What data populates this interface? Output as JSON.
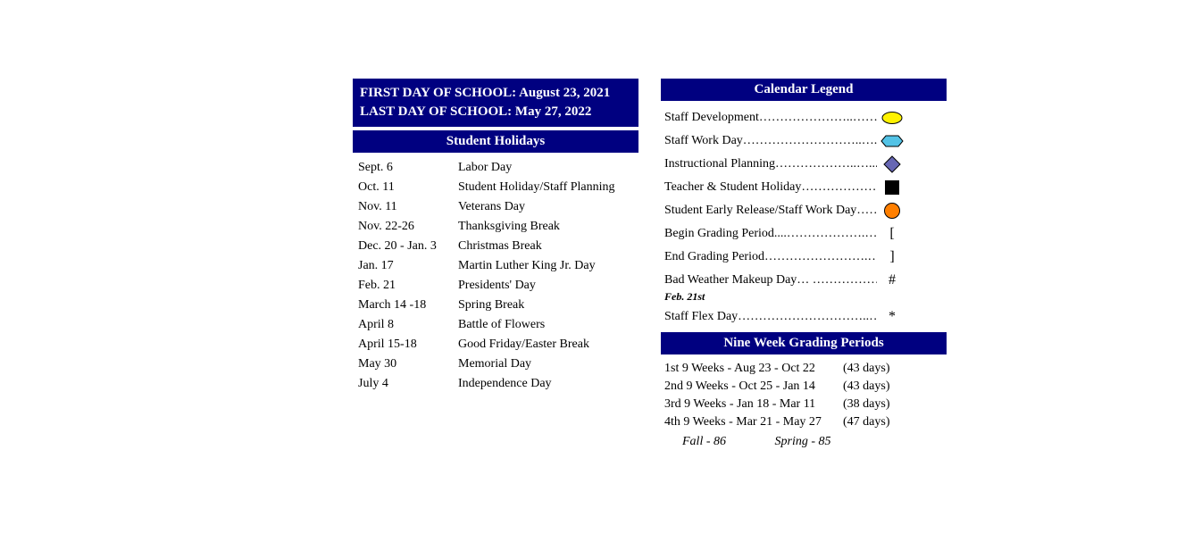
{
  "colors": {
    "banner_bg": "#000080",
    "banner_text": "#ffffff",
    "body_text": "#000000",
    "legend_yellow_fill": "#fff200",
    "legend_cyan_fill": "#53c3e6",
    "legend_purple_fill": "#6666b3",
    "legend_black_fill": "#000000",
    "legend_orange_fill": "#ff7f00",
    "stroke": "#000000"
  },
  "left": {
    "first_day_line": "FIRST DAY OF SCHOOL: August 23, 2021",
    "last_day_line": "LAST DAY OF SCHOOL: May 27, 2022",
    "holidays_header": "Student Holidays",
    "holidays": [
      {
        "date": "Sept. 6",
        "name": "Labor Day"
      },
      {
        "date": "Oct. 11",
        "name": "Student Holiday/Staff  Planning"
      },
      {
        "date": "Nov. 11",
        "name": "Veterans Day"
      },
      {
        "date": "Nov. 22-26",
        "name": "Thanksgiving Break"
      },
      {
        "date": "Dec. 20 - Jan. 3",
        "name": "Christmas Break"
      },
      {
        "date": "Jan. 17",
        "name": "Martin Luther King Jr. Day"
      },
      {
        "date": "Feb. 21",
        "name": "Presidents' Day"
      },
      {
        "date": "March 14 -18",
        "name": "Spring Break"
      },
      {
        "date": "April 8",
        "name": "Battle of Flowers"
      },
      {
        "date": "April 15-18",
        "name": "Good Friday/Easter Break"
      },
      {
        "date": "May 30",
        "name": "Memorial Day"
      },
      {
        "date": "July 4",
        "name": "Independence Day"
      }
    ]
  },
  "right": {
    "legend_header": "Calendar Legend",
    "legend": [
      {
        "label": "Staff Development…………………..……",
        "shape": "ellipse-yellow"
      },
      {
        "label": "Staff Work Day………………………..….",
        "shape": "hexagon-cyan"
      },
      {
        "label": "Instructional Planning………………..…...",
        "shape": "diamond-purple"
      },
      {
        "label": "Teacher & Student Holiday………………..",
        "shape": "square-black"
      },
      {
        "label": "Student Early Release/Staff Work Day………",
        "shape": "circle-orange"
      },
      {
        "label": "Begin Grading Period....……………….……",
        "symbol": "["
      },
      {
        "label": "End Grading Period…………………….…...",
        "symbol": "]"
      },
      {
        "label": "Bad Weather Makeup Day…  ……………….",
        "symbol": "#",
        "sub": "Feb. 21st"
      },
      {
        "label": "Staff Flex Day…………………………..………",
        "symbol": "*"
      }
    ],
    "grading_header": "Nine Week Grading Periods",
    "grading": [
      {
        "text": "1st 9 Weeks - Aug 23 - Oct 22",
        "days": "(43 days)"
      },
      {
        "text": "2nd 9 Weeks - Oct 25 - Jan 14",
        "days": "(43 days)"
      },
      {
        "text": "3rd 9 Weeks - Jan 18 - Mar 11",
        "days": "(38 days)"
      },
      {
        "text": "4th 9 Weeks - Mar 21 - May 27",
        "days": "(47 days)"
      }
    ],
    "summary_fall": "Fall - 86",
    "summary_spring": "Spring - 85"
  }
}
